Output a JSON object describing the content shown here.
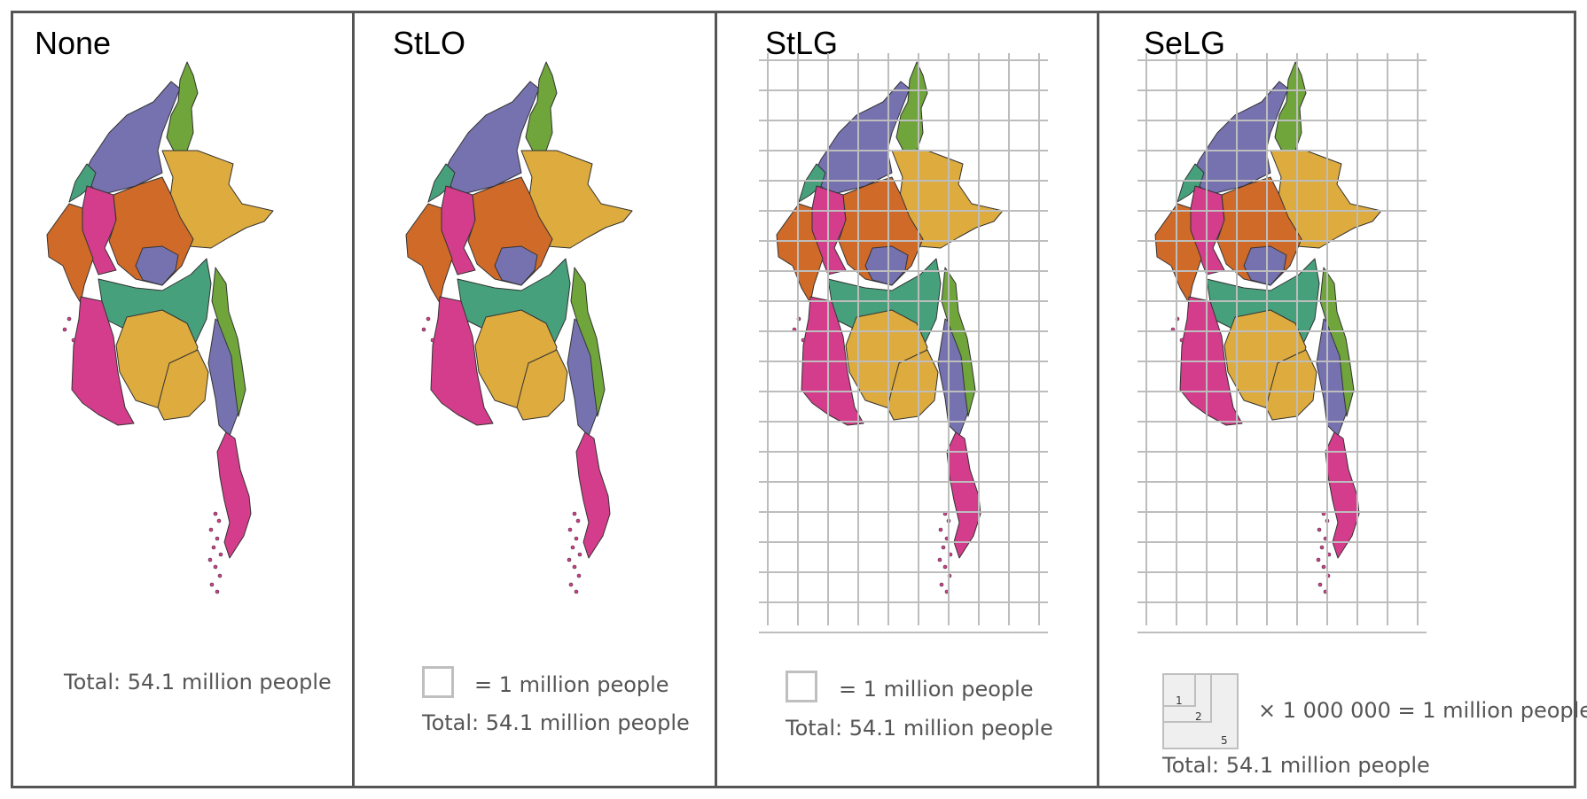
{
  "panels": [
    {
      "title": "None",
      "total": "Total: 54.1 million people"
    },
    {
      "title": "StLO",
      "legend": "= 1 million people",
      "total": "Total: 54.1 million people"
    },
    {
      "title": "StLG",
      "legend": "= 1 million people",
      "total": "Total: 54.1 million people"
    },
    {
      "title": "SeLG",
      "legend": "× 1 000 000 = 1 million people",
      "total": "Total: 54.1 million people",
      "nested_labels": [
        "1",
        "2",
        "5"
      ]
    }
  ],
  "colors": {
    "purple": "#7672b0",
    "green": "#6fa53a",
    "gold": "#ddab3e",
    "orange": "#d06a29",
    "magenta": "#d43d8c",
    "teal": "#47a07c",
    "grid": "#bdbdbd",
    "frame": "#555555",
    "text_gray": "#555555"
  }
}
